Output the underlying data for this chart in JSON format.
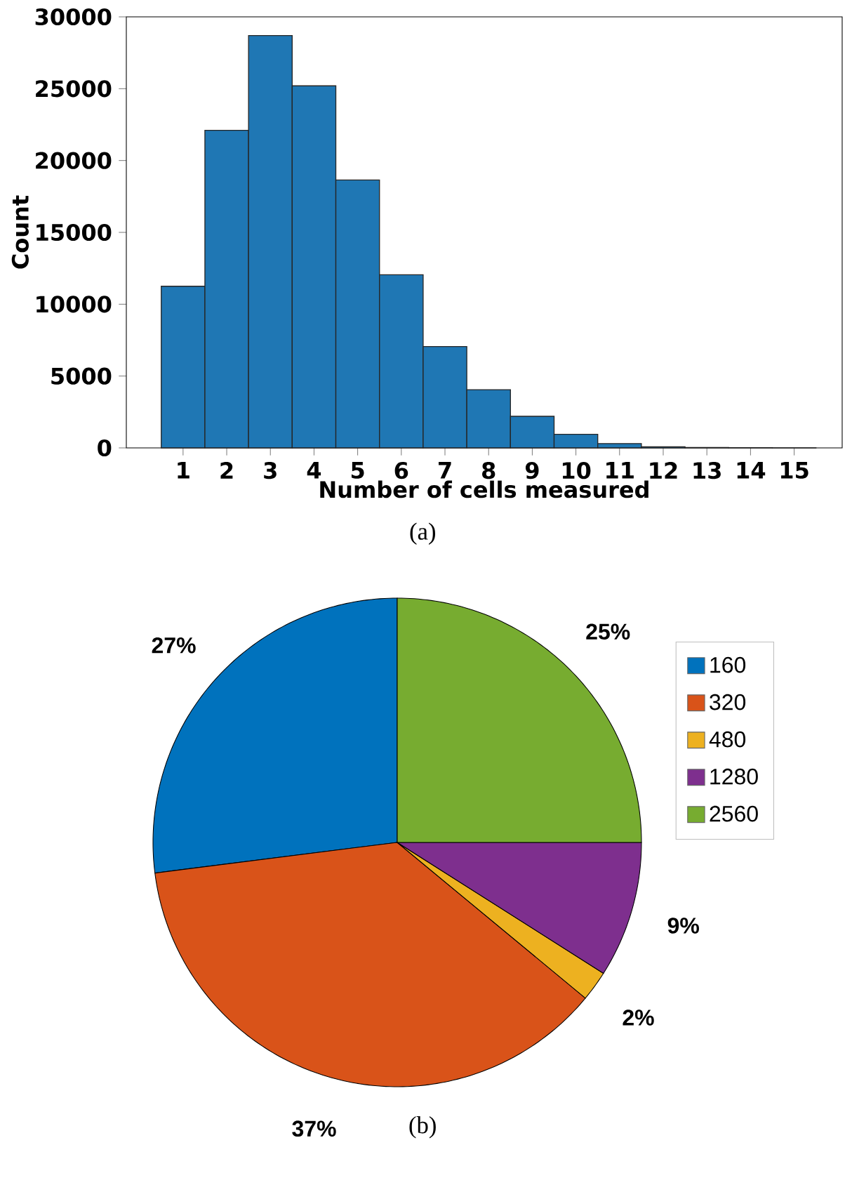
{
  "chart_data": [
    {
      "type": "bar",
      "xlabel": "Number of cells measured",
      "ylabel": "Count",
      "categories": [
        "1",
        "2",
        "3",
        "4",
        "5",
        "6",
        "7",
        "8",
        "9",
        "10",
        "11",
        "12",
        "13",
        "14",
        "15"
      ],
      "values": [
        11250,
        22100,
        28700,
        25200,
        18650,
        12050,
        7050,
        4050,
        2200,
        950,
        300,
        80,
        30,
        20,
        5
      ],
      "color": "#1f77b4",
      "ylim": [
        0,
        30000
      ],
      "yticks": [
        0,
        5000,
        10000,
        15000,
        20000,
        25000,
        30000
      ],
      "annotations": [
        "(a)"
      ]
    },
    {
      "type": "pie",
      "categories": [
        "160",
        "320",
        "480",
        "1280",
        "2560"
      ],
      "values": [
        27,
        37,
        2,
        9,
        25
      ],
      "colors": [
        "#0072bd",
        "#d95319",
        "#edb120",
        "#7e2f8e",
        "#77ac30"
      ],
      "value_labels": [
        "27%",
        "37%",
        "2%",
        "9%",
        "25%"
      ],
      "legend": "right",
      "annotations": [
        "(b)"
      ]
    }
  ]
}
